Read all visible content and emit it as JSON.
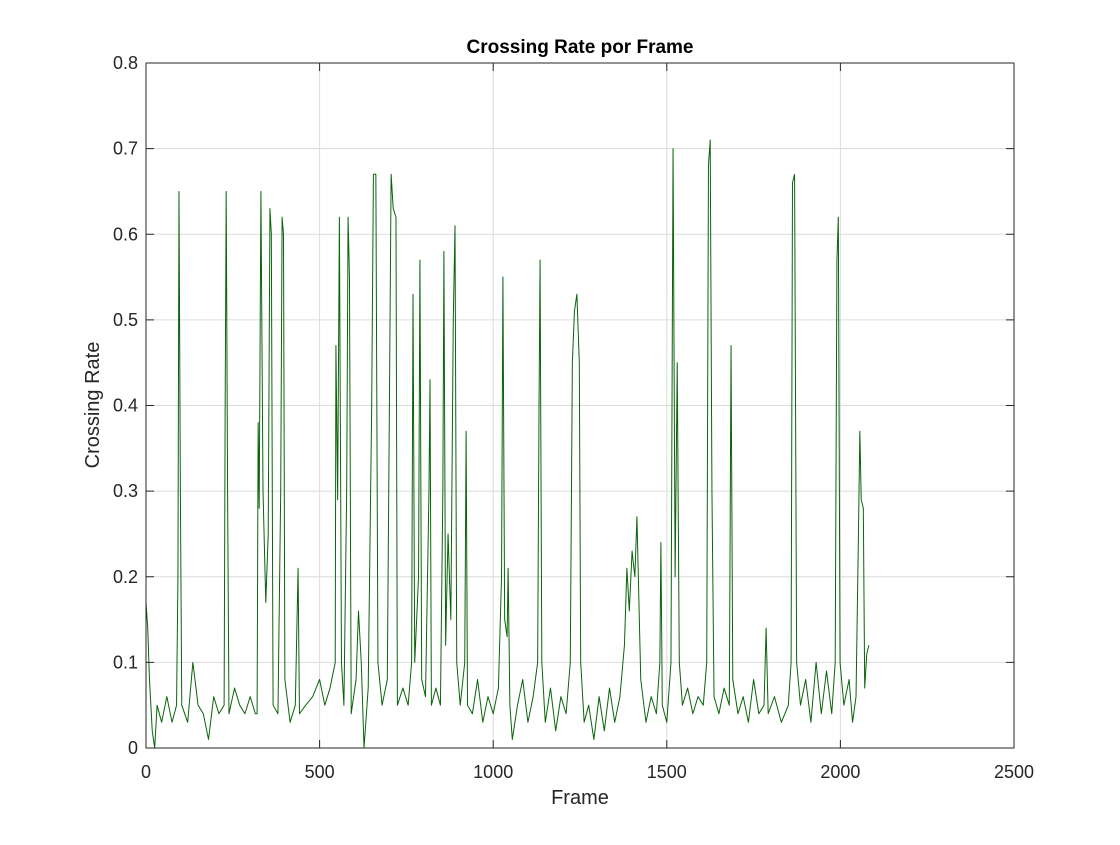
{
  "chart_data": {
    "type": "line",
    "title": "Crossing Rate por Frame",
    "x_label": "Frame",
    "y_label": "Crossing Rate",
    "color": "#0a640a",
    "grid": true,
    "xlim": [
      0,
      2500
    ],
    "xticks": [
      0,
      500,
      1000,
      1500,
      2000,
      2500
    ],
    "ylim": [
      0,
      0.8
    ],
    "yticks": [
      0,
      0.1,
      0.2,
      0.3,
      0.4,
      0.5,
      0.6,
      0.7,
      0.8
    ],
    "x": [
      0,
      5,
      10,
      18,
      25,
      32,
      45,
      60,
      75,
      88,
      92,
      95,
      99,
      103,
      120,
      135,
      150,
      165,
      180,
      195,
      210,
      225,
      228,
      231,
      235,
      239,
      255,
      270,
      285,
      300,
      315,
      320,
      323,
      326,
      331,
      337,
      345,
      352,
      357,
      361,
      366,
      380,
      388,
      392,
      396,
      400,
      415,
      430,
      438,
      442,
      460,
      480,
      500,
      515,
      530,
      545,
      547,
      552,
      557,
      563,
      570,
      578,
      582,
      586,
      591,
      605,
      612,
      620,
      628,
      640,
      650,
      655,
      662,
      668,
      680,
      695,
      702,
      706,
      712,
      720,
      724,
      740,
      755,
      765,
      769,
      774,
      785,
      789,
      794,
      805,
      815,
      818,
      822,
      835,
      848,
      855,
      858,
      863,
      870,
      878,
      885,
      890,
      895,
      905,
      918,
      922,
      926,
      940,
      955,
      970,
      985,
      1000,
      1015,
      1024,
      1028,
      1033,
      1040,
      1043,
      1048,
      1055,
      1070,
      1085,
      1100,
      1115,
      1128,
      1132,
      1135,
      1140,
      1150,
      1165,
      1180,
      1195,
      1210,
      1222,
      1228,
      1234,
      1241,
      1248,
      1252,
      1262,
      1275,
      1290,
      1305,
      1320,
      1335,
      1350,
      1365,
      1378,
      1385,
      1392,
      1400,
      1408,
      1414,
      1418,
      1425,
      1440,
      1455,
      1470,
      1480,
      1483,
      1487,
      1500,
      1512,
      1518,
      1524,
      1530,
      1536,
      1545,
      1560,
      1575,
      1590,
      1605,
      1615,
      1620,
      1625,
      1630,
      1636,
      1650,
      1665,
      1680,
      1685,
      1690,
      1705,
      1720,
      1735,
      1750,
      1765,
      1780,
      1786,
      1792,
      1810,
      1830,
      1850,
      1858,
      1862,
      1868,
      1874,
      1885,
      1900,
      1915,
      1930,
      1945,
      1960,
      1975,
      1985,
      1990,
      1994,
      1999,
      2010,
      2025,
      2035,
      2045,
      2052,
      2056,
      2060,
      2066,
      2070,
      2076,
      2082
    ],
    "values": [
      0.17,
      0.14,
      0.08,
      0.02,
      0.0,
      0.05,
      0.03,
      0.06,
      0.03,
      0.05,
      0.2,
      0.65,
      0.3,
      0.05,
      0.03,
      0.1,
      0.05,
      0.04,
      0.01,
      0.06,
      0.04,
      0.05,
      0.4,
      0.65,
      0.3,
      0.04,
      0.07,
      0.05,
      0.04,
      0.06,
      0.04,
      0.04,
      0.38,
      0.28,
      0.65,
      0.3,
      0.17,
      0.25,
      0.63,
      0.6,
      0.05,
      0.04,
      0.3,
      0.62,
      0.6,
      0.08,
      0.03,
      0.05,
      0.21,
      0.04,
      0.05,
      0.06,
      0.08,
      0.05,
      0.07,
      0.1,
      0.47,
      0.29,
      0.62,
      0.1,
      0.05,
      0.3,
      0.62,
      0.55,
      0.04,
      0.08,
      0.16,
      0.1,
      0.0,
      0.07,
      0.4,
      0.67,
      0.67,
      0.1,
      0.05,
      0.08,
      0.45,
      0.67,
      0.63,
      0.62,
      0.05,
      0.07,
      0.05,
      0.1,
      0.53,
      0.1,
      0.2,
      0.57,
      0.08,
      0.06,
      0.3,
      0.43,
      0.05,
      0.07,
      0.05,
      0.3,
      0.58,
      0.12,
      0.25,
      0.15,
      0.5,
      0.61,
      0.1,
      0.05,
      0.1,
      0.37,
      0.05,
      0.04,
      0.08,
      0.03,
      0.06,
      0.04,
      0.07,
      0.2,
      0.55,
      0.15,
      0.13,
      0.21,
      0.05,
      0.01,
      0.05,
      0.08,
      0.03,
      0.06,
      0.1,
      0.4,
      0.57,
      0.1,
      0.03,
      0.07,
      0.02,
      0.06,
      0.04,
      0.1,
      0.45,
      0.51,
      0.53,
      0.45,
      0.1,
      0.03,
      0.05,
      0.01,
      0.06,
      0.02,
      0.07,
      0.03,
      0.06,
      0.12,
      0.21,
      0.16,
      0.23,
      0.2,
      0.27,
      0.2,
      0.08,
      0.03,
      0.06,
      0.04,
      0.1,
      0.24,
      0.05,
      0.03,
      0.1,
      0.7,
      0.2,
      0.45,
      0.1,
      0.05,
      0.07,
      0.04,
      0.06,
      0.05,
      0.1,
      0.68,
      0.71,
      0.3,
      0.06,
      0.04,
      0.07,
      0.05,
      0.47,
      0.08,
      0.04,
      0.06,
      0.03,
      0.08,
      0.04,
      0.05,
      0.14,
      0.04,
      0.06,
      0.03,
      0.05,
      0.1,
      0.66,
      0.67,
      0.1,
      0.05,
      0.08,
      0.03,
      0.1,
      0.04,
      0.09,
      0.04,
      0.1,
      0.57,
      0.62,
      0.1,
      0.05,
      0.08,
      0.03,
      0.06,
      0.25,
      0.37,
      0.29,
      0.28,
      0.07,
      0.11,
      0.12
    ]
  }
}
